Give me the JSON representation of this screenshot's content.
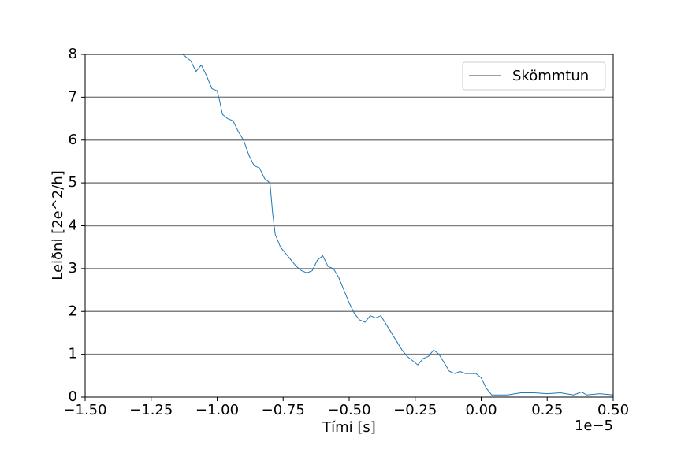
{
  "chart_data": {
    "type": "line",
    "xlabel": "Tími [s]",
    "ylabel": "Leiðni [2e^2/h]",
    "x_offset_label": "1e−5",
    "x": [
      -1.13,
      -1.1,
      -1.08,
      -1.06,
      -1.04,
      -1.02,
      -1.0,
      -0.99,
      -0.98,
      -0.96,
      -0.94,
      -0.92,
      -0.9,
      -0.88,
      -0.86,
      -0.84,
      -0.82,
      -0.8,
      -0.79,
      -0.78,
      -0.76,
      -0.74,
      -0.72,
      -0.7,
      -0.68,
      -0.66,
      -0.64,
      -0.62,
      -0.6,
      -0.58,
      -0.56,
      -0.54,
      -0.52,
      -0.5,
      -0.48,
      -0.46,
      -0.44,
      -0.42,
      -0.4,
      -0.38,
      -0.36,
      -0.34,
      -0.32,
      -0.3,
      -0.28,
      -0.26,
      -0.24,
      -0.22,
      -0.2,
      -0.18,
      -0.16,
      -0.14,
      -0.12,
      -0.1,
      -0.08,
      -0.06,
      -0.04,
      -0.02,
      0.0,
      0.02,
      0.04,
      0.06,
      0.1,
      0.15,
      0.2,
      0.25,
      0.3,
      0.35,
      0.38,
      0.4,
      0.45,
      0.5
    ],
    "series": [
      {
        "name": "",
        "color": "#1f77b4",
        "values": [
          8.0,
          7.85,
          7.6,
          7.75,
          7.5,
          7.2,
          7.15,
          6.9,
          6.6,
          6.5,
          6.45,
          6.2,
          6.0,
          5.65,
          5.4,
          5.35,
          5.1,
          5.0,
          4.3,
          3.8,
          3.5,
          3.35,
          3.2,
          3.05,
          2.95,
          2.9,
          2.95,
          3.2,
          3.3,
          3.05,
          3.0,
          2.8,
          2.5,
          2.2,
          1.95,
          1.8,
          1.75,
          1.9,
          1.85,
          1.9,
          1.7,
          1.5,
          1.3,
          1.1,
          0.95,
          0.85,
          0.75,
          0.9,
          0.95,
          1.1,
          1.0,
          0.8,
          0.6,
          0.55,
          0.6,
          0.55,
          0.55,
          0.55,
          0.45,
          0.2,
          0.05,
          0.05,
          0.05,
          0.1,
          0.1,
          0.08,
          0.1,
          0.05,
          0.12,
          0.05,
          0.08,
          0.05
        ]
      }
    ],
    "hlines": {
      "name": "Skömmtun",
      "color": "#808080",
      "values": [
        1,
        2,
        3,
        4,
        5,
        6,
        7
      ]
    },
    "xlim": [
      -1.5,
      0.5
    ],
    "xticks": [
      {
        "value": -1.5,
        "label": "−1.50"
      },
      {
        "value": -1.25,
        "label": "−1.25"
      },
      {
        "value": -1.0,
        "label": "−1.00"
      },
      {
        "value": -0.75,
        "label": "−0.75"
      },
      {
        "value": -0.5,
        "label": "−0.50"
      },
      {
        "value": -0.25,
        "label": "−0.25"
      },
      {
        "value": 0,
        "label": "0.00"
      },
      {
        "value": 0.25,
        "label": "0.25"
      },
      {
        "value": 0.5,
        "label": "0.50"
      }
    ],
    "ylim": [
      0,
      8
    ],
    "yticks": [
      0,
      1,
      2,
      3,
      4,
      5,
      6,
      7,
      8
    ],
    "legend": "upper right"
  }
}
